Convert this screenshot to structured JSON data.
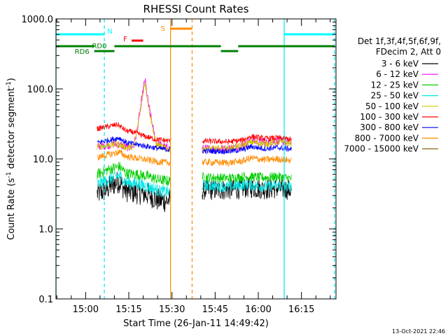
{
  "chart_data": {
    "type": "line",
    "title": "RHESSI Count Rates",
    "xlabel": "Start Time (26-Jan-11 14:49:42)",
    "ylabel_parts": [
      "Count Rate (s",
      "-1",
      " detector segment",
      "-1",
      ")"
    ],
    "y_scale": "log",
    "ylim": [
      0.1,
      1000
    ],
    "y_ticks": [
      {
        "value": 0.1,
        "label": "0.1"
      },
      {
        "value": 1,
        "label": "1.0"
      },
      {
        "value": 10,
        "label": "10.0"
      },
      {
        "value": 100,
        "label": "100.0"
      },
      {
        "value": 1000,
        "label": "1000.0"
      }
    ],
    "xlim": [
      "14:49:42",
      "16:27:00"
    ],
    "x_ticks": [
      "15:00",
      "15:15",
      "15:30",
      "15:45",
      "16:00",
      "16:15"
    ],
    "legend_header": [
      "Det 1f,3f,4f,5f,6f,9f,",
      "FDecim 2, Att 0"
    ],
    "legend_placement": "right",
    "footer_date": "13-Oct-2021 22:46",
    "series": [
      {
        "name": "3 - 6 keV",
        "color": "#000000",
        "segments": [
          {
            "start": "15:04:00",
            "end": "15:29:30",
            "points": [
              [
                0,
                3.2
              ],
              [
                0.1,
                3.5
              ],
              [
                0.2,
                4.2
              ],
              [
                0.3,
                4.8
              ],
              [
                0.38,
                3.6
              ],
              [
                0.45,
                3.4
              ],
              [
                0.55,
                3.3
              ],
              [
                0.7,
                3.1
              ],
              [
                0.82,
                2.6
              ],
              [
                0.93,
                2.5
              ],
              [
                1,
                2.6
              ]
            ],
            "noise": 0.17
          },
          {
            "start": "15:40:30",
            "end": "16:11:30",
            "points": [
              [
                0,
                3.6
              ],
              [
                0.2,
                3.6
              ],
              [
                0.4,
                3.7
              ],
              [
                0.5,
                3.9
              ],
              [
                0.7,
                3.7
              ],
              [
                0.85,
                3.8
              ],
              [
                1,
                3.6
              ]
            ],
            "noise": 0.15
          }
        ]
      },
      {
        "name": "6 - 12 keV",
        "color": "#ff00ff",
        "segments": [
          {
            "start": "15:04:00",
            "end": "15:29:30",
            "points": [
              [
                0,
                15
              ],
              [
                0.12,
                15.5
              ],
              [
                0.2,
                16.2
              ],
              [
                0.3,
                16
              ],
              [
                0.4,
                14.5
              ],
              [
                0.5,
                15
              ],
              [
                0.55,
                28
              ],
              [
                0.62,
                85
              ],
              [
                0.65,
                140
              ],
              [
                0.7,
                60
              ],
              [
                0.76,
                28
              ],
              [
                0.8,
                17
              ],
              [
                0.9,
                15
              ],
              [
                1,
                14
              ]
            ],
            "noise": 0.06
          },
          {
            "start": "15:40:30",
            "end": "16:11:30",
            "points": [
              [
                0,
                14
              ],
              [
                0.3,
                14
              ],
              [
                0.45,
                15.5
              ],
              [
                0.55,
                18
              ],
              [
                0.7,
                17
              ],
              [
                0.85,
                18
              ],
              [
                1,
                17
              ]
            ],
            "noise": 0.06
          }
        ]
      },
      {
        "name": "12 - 25 keV",
        "color": "#00cc00",
        "segments": [
          {
            "start": "15:04:00",
            "end": "15:29:30",
            "points": [
              [
                0,
                6
              ],
              [
                0.15,
                7
              ],
              [
                0.3,
                7.8
              ],
              [
                0.4,
                6.2
              ],
              [
                0.55,
                6
              ],
              [
                0.7,
                5.6
              ],
              [
                0.85,
                5
              ],
              [
                1,
                4.8
              ]
            ],
            "noise": 0.08
          },
          {
            "start": "15:40:30",
            "end": "16:11:30",
            "points": [
              [
                0,
                5.5
              ],
              [
                0.3,
                5.3
              ],
              [
                0.5,
                5.6
              ],
              [
                0.7,
                5.4
              ],
              [
                0.85,
                5.6
              ],
              [
                1,
                5.2
              ]
            ],
            "noise": 0.07
          }
        ]
      },
      {
        "name": "25 - 50 keV",
        "color": "#00e6e6",
        "segments": [
          {
            "start": "15:04:00",
            "end": "15:29:30",
            "points": [
              [
                0,
                4.3
              ],
              [
                0.15,
                5
              ],
              [
                0.3,
                5.8
              ],
              [
                0.4,
                4.6
              ],
              [
                0.55,
                4.4
              ],
              [
                0.7,
                4
              ],
              [
                0.85,
                3.5
              ],
              [
                1,
                3.3
              ]
            ],
            "noise": 0.09
          },
          {
            "start": "15:40:30",
            "end": "16:11:30",
            "points": [
              [
                0,
                4.2
              ],
              [
                0.3,
                4
              ],
              [
                0.5,
                4.3
              ],
              [
                0.7,
                4
              ],
              [
                0.85,
                4.2
              ],
              [
                1,
                3.9
              ]
            ],
            "noise": 0.08
          }
        ]
      },
      {
        "name": "50 - 100 keV",
        "color": "#cccc00",
        "segments": [
          {
            "start": "15:04:00",
            "end": "15:29:30",
            "points": [
              [
                0,
                15
              ],
              [
                0.12,
                15.5
              ],
              [
                0.2,
                16.2
              ],
              [
                0.3,
                16
              ],
              [
                0.4,
                14.5
              ],
              [
                0.5,
                15
              ],
              [
                0.55,
                27
              ],
              [
                0.62,
                80
              ],
              [
                0.65,
                130
              ],
              [
                0.7,
                55
              ],
              [
                0.76,
                27
              ],
              [
                0.8,
                16.5
              ],
              [
                0.9,
                14.5
              ],
              [
                1,
                13.5
              ]
            ],
            "noise": 0.05
          },
          {
            "start": "15:40:30",
            "end": "16:11:30",
            "points": [
              [
                0,
                14
              ],
              [
                0.3,
                14
              ],
              [
                0.45,
                15.5
              ],
              [
                0.55,
                17.5
              ],
              [
                0.7,
                16.5
              ],
              [
                0.85,
                17.5
              ],
              [
                1,
                16.5
              ]
            ],
            "noise": 0.05
          }
        ]
      },
      {
        "name": "100 - 300 keV",
        "color": "#ff0000",
        "segments": [
          {
            "start": "15:04:00",
            "end": "15:29:30",
            "points": [
              [
                0,
                27
              ],
              [
                0.15,
                29
              ],
              [
                0.28,
                31
              ],
              [
                0.4,
                25
              ],
              [
                0.5,
                24
              ],
              [
                0.65,
                21
              ],
              [
                0.8,
                19
              ],
              [
                1,
                18
              ]
            ],
            "noise": 0.04
          },
          {
            "start": "15:40:30",
            "end": "16:11:30",
            "points": [
              [
                0,
                18
              ],
              [
                0.3,
                17.5
              ],
              [
                0.45,
                18.5
              ],
              [
                0.55,
                21
              ],
              [
                0.7,
                19.5
              ],
              [
                0.85,
                20
              ],
              [
                1,
                19
              ]
            ],
            "noise": 0.04
          }
        ]
      },
      {
        "name": "300 - 800 keV",
        "color": "#0000ff",
        "segments": [
          {
            "start": "15:04:00",
            "end": "15:29:30",
            "points": [
              [
                0,
                17
              ],
              [
                0.15,
                18.5
              ],
              [
                0.3,
                20
              ],
              [
                0.4,
                17
              ],
              [
                0.55,
                16
              ],
              [
                0.7,
                15
              ],
              [
                0.85,
                14
              ],
              [
                1,
                13.5
              ]
            ],
            "noise": 0.04
          },
          {
            "start": "15:40:30",
            "end": "16:11:30",
            "points": [
              [
                0,
                13
              ],
              [
                0.3,
                12.8
              ],
              [
                0.45,
                13.5
              ],
              [
                0.55,
                15
              ],
              [
                0.7,
                14
              ],
              [
                0.85,
                14.5
              ],
              [
                1,
                13.8
              ]
            ],
            "noise": 0.04
          }
        ]
      },
      {
        "name": "800 - 7000 keV",
        "color": "#ff8c00",
        "segments": [
          {
            "start": "15:04:00",
            "end": "15:29:30",
            "points": [
              [
                0,
                10.5
              ],
              [
                0.15,
                11.5
              ],
              [
                0.3,
                12.5
              ],
              [
                0.4,
                10.8
              ],
              [
                0.55,
                10.2
              ],
              [
                0.7,
                9.6
              ],
              [
                0.85,
                9
              ],
              [
                1,
                8.8
              ]
            ],
            "noise": 0.05
          },
          {
            "start": "15:40:30",
            "end": "16:11:30",
            "points": [
              [
                0,
                9
              ],
              [
                0.3,
                8.8
              ],
              [
                0.45,
                9.3
              ],
              [
                0.55,
                10.3
              ],
              [
                0.7,
                9.7
              ],
              [
                0.85,
                10
              ],
              [
                1,
                9.5
              ]
            ],
            "noise": 0.05
          }
        ]
      },
      {
        "name": "7000 - 15000 keV",
        "color": "#8b6914",
        "segments": []
      }
    ],
    "flags": [
      {
        "label": "N",
        "color": "#00ffff",
        "label_color": "#00ffff",
        "level": 0,
        "segments": [
          [
            "14:49:42",
            "15:06:30"
          ],
          [
            "16:09:00",
            "16:26:30"
          ]
        ]
      },
      {
        "label": "F",
        "color": "#ff0000",
        "label_color": "#ff0000",
        "level": 1,
        "segments": [
          [
            "15:16:00",
            "15:20:00"
          ]
        ]
      },
      {
        "label": "S",
        "color": "#ff8c00",
        "label_color": "#ff8c00",
        "level": -1,
        "segments": [
          [
            "15:29:30",
            "15:37:00"
          ]
        ]
      },
      {
        "label": "RD0",
        "color": "#008000",
        "label_color": "#008000",
        "level": 2,
        "segments": [
          [
            "14:49:42",
            "15:03:00"
          ],
          [
            "15:10:00",
            "15:47:00"
          ],
          [
            "15:53:00",
            "16:26:30"
          ]
        ]
      },
      {
        "label": "RD6",
        "color": "#008000",
        "label_color": "#008000",
        "level": 3,
        "segments": [
          [
            "15:03:00",
            "15:10:00"
          ],
          [
            "15:47:00",
            "15:53:00"
          ]
        ]
      }
    ],
    "vertical_markers": [
      {
        "time": "14:49:42",
        "color": "#00e6e6",
        "style": "solid"
      },
      {
        "time": "15:06:30",
        "color": "#00e6e6",
        "style": "dashed"
      },
      {
        "time": "15:29:30",
        "color": "#ff8c00",
        "style": "solid"
      },
      {
        "time": "15:37:00",
        "color": "#ff8c00",
        "style": "dashed"
      },
      {
        "time": "16:09:00",
        "color": "#00e6e6",
        "style": "solid"
      },
      {
        "time": "16:26:30",
        "color": "#00e6e6",
        "style": "dashed"
      }
    ]
  }
}
